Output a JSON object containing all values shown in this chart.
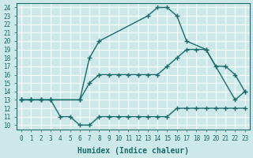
{
  "xlabel": "Humidex (Indice chaleur)",
  "bg_color": "#cce8e8",
  "line_color": "#1a6b6b",
  "grid_color": "#ffffff",
  "xlim": [
    -0.5,
    23.5
  ],
  "ylim": [
    9.5,
    24.5
  ],
  "xticks": [
    0,
    1,
    2,
    3,
    4,
    5,
    6,
    7,
    8,
    9,
    10,
    11,
    12,
    13,
    14,
    15,
    16,
    17,
    18,
    19,
    20,
    21,
    22,
    23
  ],
  "yticks": [
    10,
    11,
    12,
    13,
    14,
    15,
    16,
    17,
    18,
    19,
    20,
    21,
    22,
    23,
    24
  ],
  "curve_top_x": [
    0,
    1,
    2,
    3,
    6,
    7,
    8,
    13,
    14,
    15,
    16,
    17,
    19,
    22,
    23
  ],
  "curve_top_y": [
    13,
    13,
    13,
    13,
    13,
    18,
    20,
    23,
    24,
    24,
    23,
    20,
    19,
    13,
    14
  ],
  "curve_mid_x": [
    0,
    1,
    2,
    3,
    6,
    7,
    8,
    9,
    10,
    11,
    12,
    13,
    14,
    15,
    16,
    17,
    18,
    19,
    20,
    21,
    22,
    23
  ],
  "curve_mid_y": [
    13,
    13,
    13,
    13,
    13,
    15,
    16,
    16,
    16,
    16,
    16,
    16,
    16,
    17,
    18,
    19,
    19,
    19,
    17,
    17,
    16,
    14
  ],
  "curve_bot_x": [
    0,
    1,
    2,
    3,
    4,
    5,
    6,
    7,
    8,
    9,
    10,
    11,
    12,
    13,
    14,
    15,
    16,
    17,
    18,
    19,
    20,
    21,
    22,
    23
  ],
  "curve_bot_y": [
    13,
    13,
    13,
    13,
    11,
    11,
    10,
    10,
    11,
    11,
    11,
    11,
    11,
    11,
    11,
    11,
    12,
    12,
    12,
    12,
    12,
    12,
    12,
    12
  ]
}
